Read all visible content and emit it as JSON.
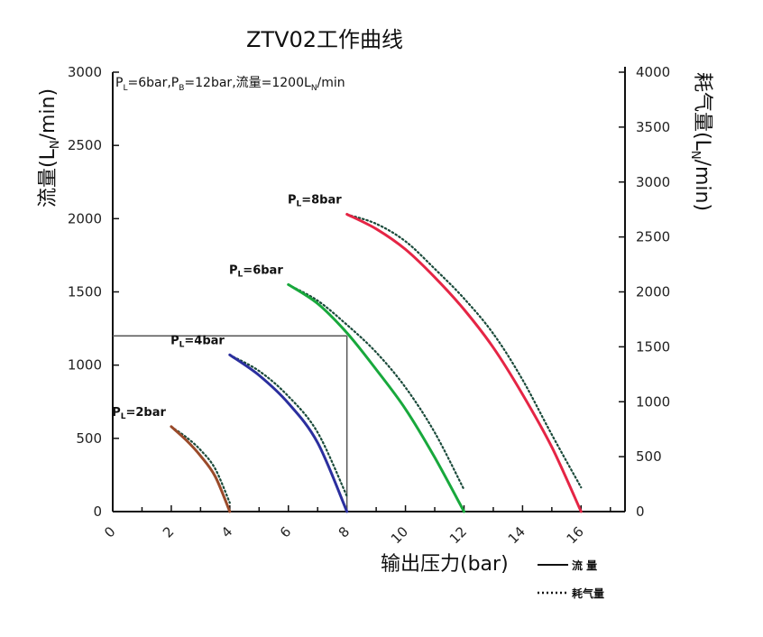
{
  "chart_data": {
    "type": "line",
    "title": "ZTV02工作曲线",
    "annotation": {
      "pl": "P",
      "pl_sub": "L",
      "pl_val": "=6bar,P",
      "pb_sub": "B",
      "pb_val": "=12bar,流量=1200L",
      "ln_sub": "N",
      "tail": "/min"
    },
    "xlabel": "输出压力(bar)",
    "ylabel_left": {
      "main": "流量(L",
      "sub": "N",
      "tail": "/min)"
    },
    "ylabel_right": {
      "main": "耗气量(L",
      "sub": "N",
      "tail": "/min)"
    },
    "xlim": [
      0,
      17.5
    ],
    "ylim_left": [
      0,
      3000
    ],
    "ylim_right": [
      0,
      4000
    ],
    "x_ticks": [
      "0",
      "2",
      "4",
      "6",
      "8",
      "10",
      "12",
      "14",
      "16"
    ],
    "y_left_ticks": [
      "0",
      "500",
      "1000",
      "1500",
      "2000",
      "2500",
      "3000"
    ],
    "y_right_ticks": [
      "0",
      "500",
      "1000",
      "1500",
      "2000",
      "2500",
      "3000",
      "3500",
      "4000"
    ],
    "reference": {
      "x": 8,
      "y": 1200
    },
    "legend": {
      "flow": "流 量",
      "air": "耗气量"
    },
    "series": [
      {
        "label_p": "P",
        "label_sub": "L",
        "label_val": "=2bar",
        "color": "#9a4a2a",
        "flow": [
          [
            2,
            580
          ],
          [
            2.5,
            490
          ],
          [
            3,
            380
          ],
          [
            3.5,
            240
          ],
          [
            4,
            0
          ]
        ],
        "air": [
          [
            2,
            772
          ],
          [
            2.5,
            680
          ],
          [
            3,
            560
          ],
          [
            3.5,
            390
          ],
          [
            4,
            80
          ]
        ]
      },
      {
        "label_p": "P",
        "label_sub": "L",
        "label_val": "=4bar",
        "color": "#2b2f9e",
        "flow": [
          [
            4,
            1070
          ],
          [
            5,
            930
          ],
          [
            6,
            740
          ],
          [
            7,
            470
          ],
          [
            8,
            0
          ]
        ],
        "air": [
          [
            4,
            1425
          ],
          [
            5,
            1280
          ],
          [
            6,
            1050
          ],
          [
            7,
            720
          ],
          [
            8,
            140
          ]
        ]
      },
      {
        "label_p": "P",
        "label_sub": "L",
        "label_val": "=6bar",
        "color": "#18a83c",
        "flow": [
          [
            6,
            1550
          ],
          [
            7,
            1420
          ],
          [
            8,
            1220
          ],
          [
            9,
            970
          ],
          [
            10,
            700
          ],
          [
            11,
            370
          ],
          [
            12,
            0
          ]
        ],
        "air": [
          [
            6,
            2065
          ],
          [
            7,
            1920
          ],
          [
            8,
            1700
          ],
          [
            9,
            1450
          ],
          [
            10,
            1130
          ],
          [
            11,
            720
          ],
          [
            12,
            200
          ]
        ]
      },
      {
        "label_p": "P",
        "label_sub": "L",
        "label_val": "=8bar",
        "color": "#e52545",
        "flow": [
          [
            8,
            2030
          ],
          [
            9,
            1930
          ],
          [
            10,
            1790
          ],
          [
            11,
            1600
          ],
          [
            12,
            1380
          ],
          [
            13,
            1120
          ],
          [
            14,
            800
          ],
          [
            15,
            440
          ],
          [
            16,
            0
          ]
        ],
        "air": [
          [
            8,
            2705
          ],
          [
            9,
            2620
          ],
          [
            10,
            2460
          ],
          [
            11,
            2210
          ],
          [
            12,
            1940
          ],
          [
            13,
            1620
          ],
          [
            14,
            1200
          ],
          [
            15,
            700
          ],
          [
            16,
            220
          ]
        ]
      }
    ]
  }
}
